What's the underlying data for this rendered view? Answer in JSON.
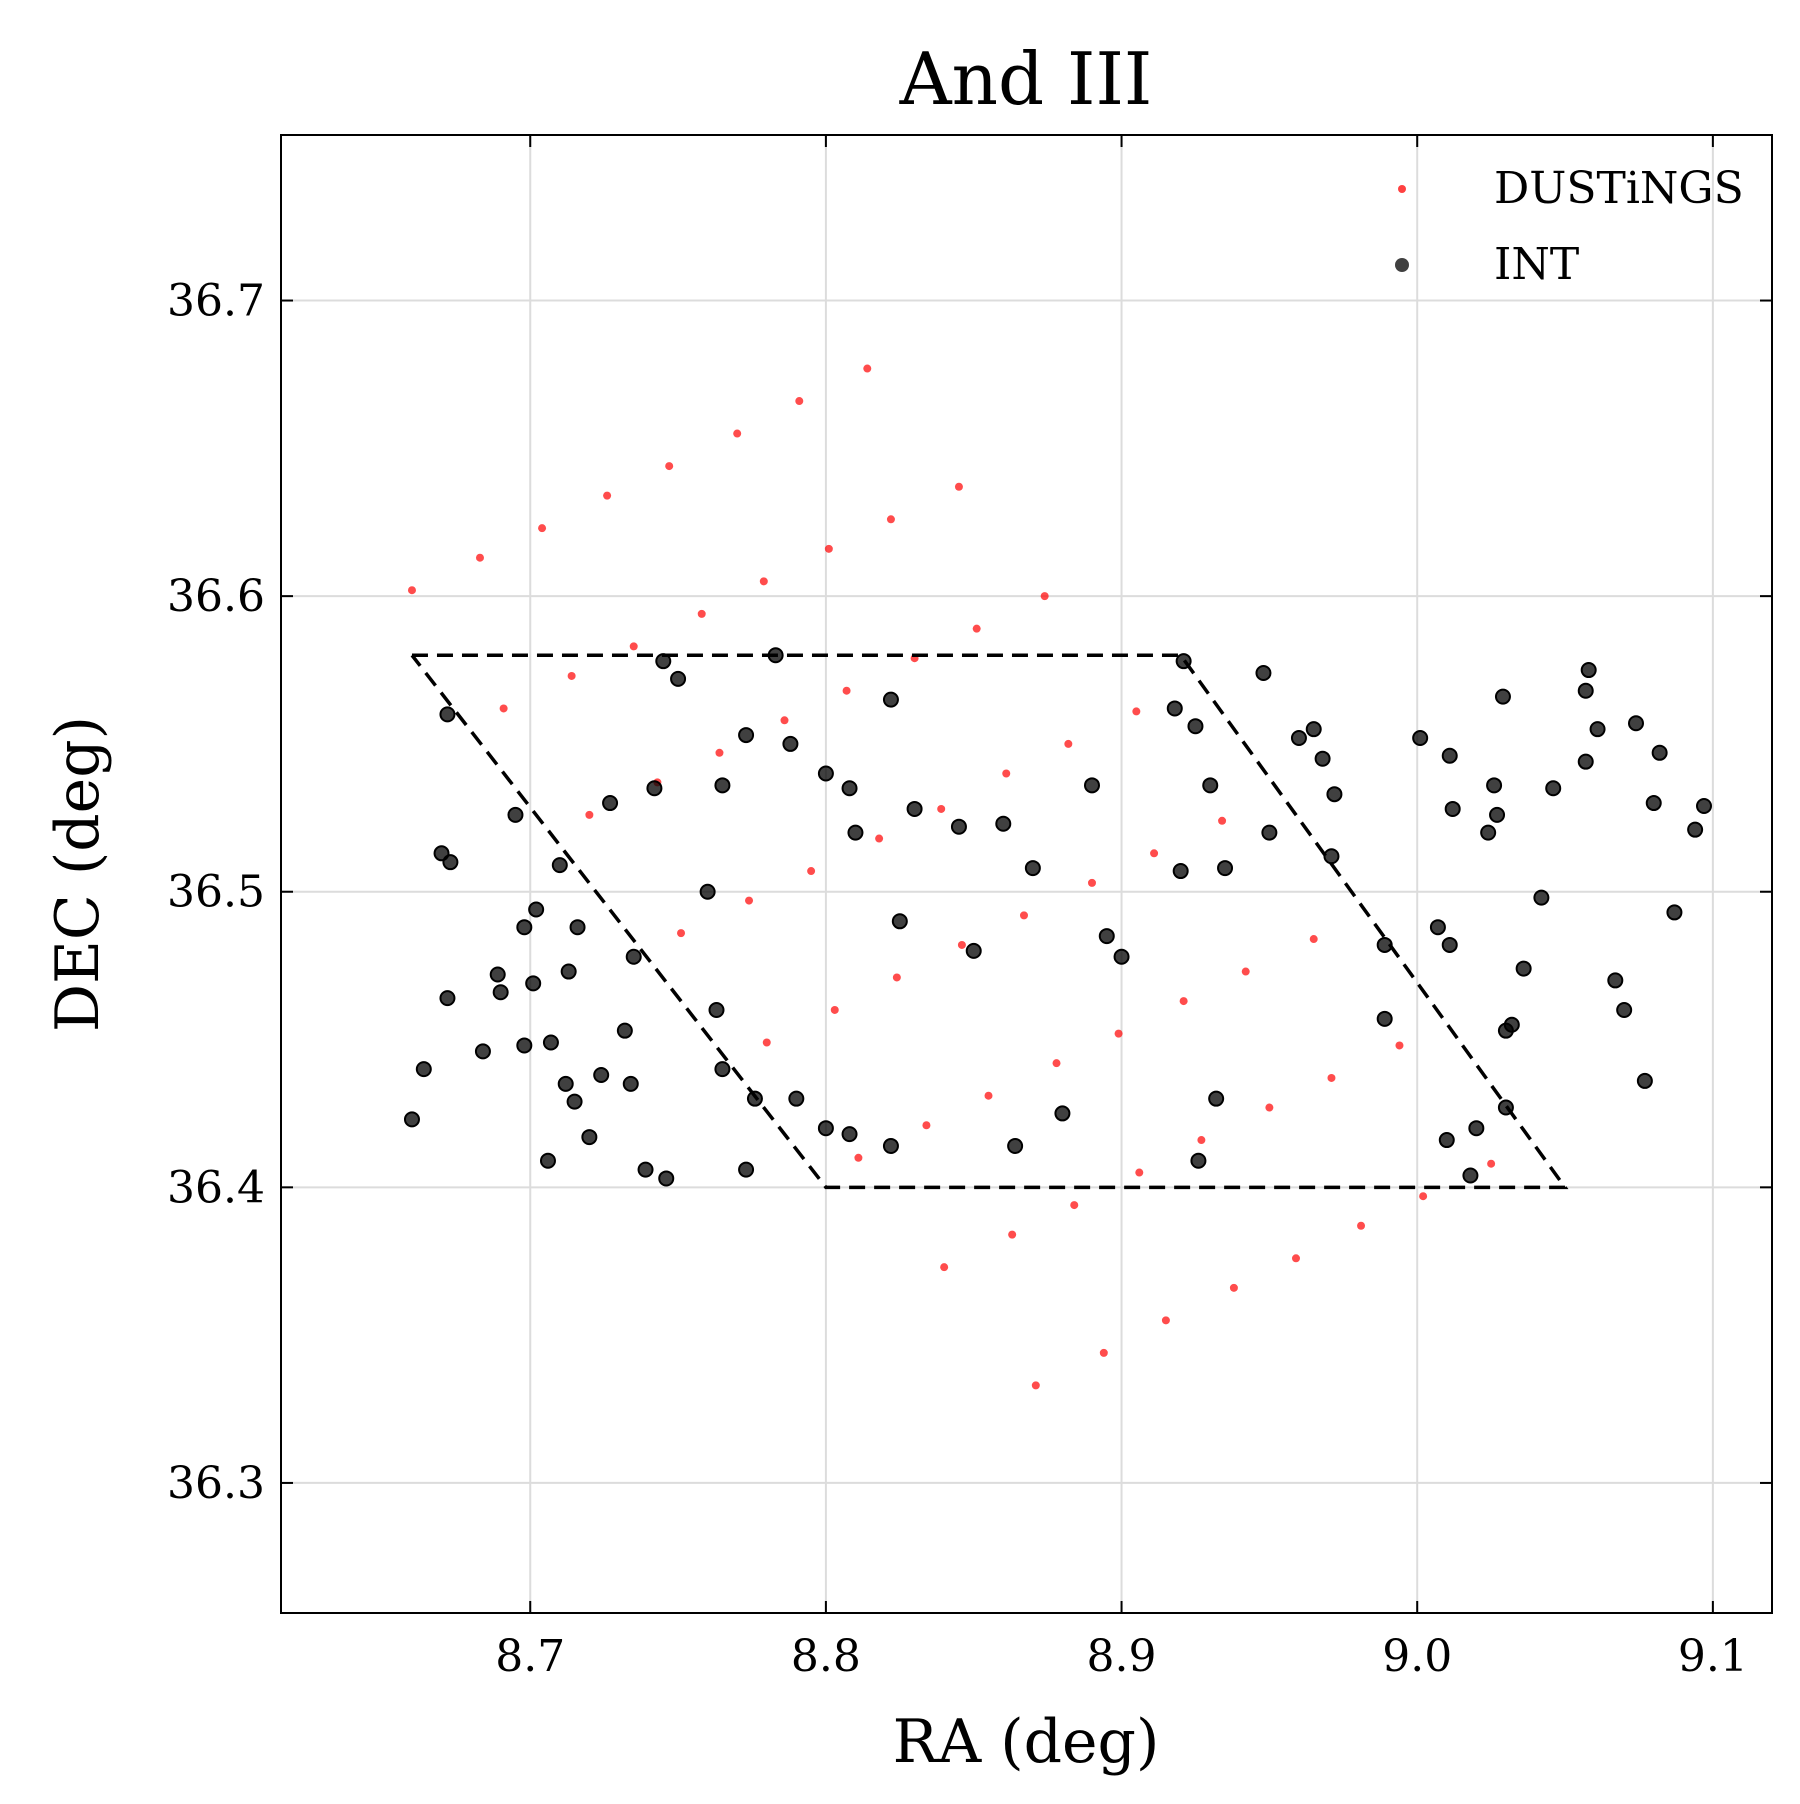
{
  "chart_data": {
    "type": "scatter",
    "title": "And III",
    "x_label": "RA (deg)",
    "y_label": "DEC (deg)",
    "xlim": [
      8.6157,
      9.12
    ],
    "ylim": [
      36.256,
      36.756
    ],
    "xticks": [
      8.7,
      8.8,
      8.9,
      {
        "value": 9.0,
        "label": "9.0"
      },
      9.1
    ],
    "yticks": [
      36.3,
      36.4,
      36.5,
      36.6,
      36.7
    ],
    "grid": true,
    "legend": "upper right",
    "series": [
      {
        "name": "DUSTiNGS",
        "color": "#ff0000",
        "x": [
          8.66,
          8.683,
          8.704,
          8.726,
          8.747,
          8.77,
          8.791,
          8.814,
          8.691,
          8.714,
          8.735,
          8.758,
          8.779,
          8.801,
          8.822,
          8.845,
          8.72,
          8.743,
          8.764,
          8.786,
          8.807,
          8.83,
          8.851,
          8.874,
          8.751,
          8.774,
          8.795,
          8.818,
          8.839,
          8.861,
          8.882,
          8.905,
          8.78,
          8.803,
          8.824,
          8.846,
          8.867,
          8.89,
          8.911,
          8.934,
          8.811,
          8.834,
          8.855,
          8.878,
          8.899,
          8.921,
          8.942,
          8.965,
          8.84,
          8.863,
          8.884,
          8.906,
          8.927,
          8.95,
          8.971,
          8.994,
          8.871,
          8.894,
          8.915,
          8.938,
          8.959,
          8.981,
          9.002,
          9.025
        ],
        "values": [
          36.602,
          36.613,
          36.623,
          36.634,
          36.644,
          36.655,
          36.666,
          36.677,
          36.562,
          36.573,
          36.583,
          36.594,
          36.605,
          36.616,
          36.626,
          36.637,
          36.526,
          36.537,
          36.547,
          36.558,
          36.568,
          36.579,
          36.589,
          36.6,
          36.486,
          36.497,
          36.507,
          36.518,
          36.528,
          36.54,
          36.55,
          36.561,
          36.449,
          36.46,
          36.471,
          36.482,
          36.492,
          36.503,
          36.513,
          36.524,
          36.41,
          36.421,
          36.431,
          36.442,
          36.452,
          36.463,
          36.473,
          36.484,
          36.373,
          36.384,
          36.394,
          36.405,
          36.416,
          36.427,
          36.437,
          36.448,
          36.333,
          36.344,
          36.355,
          36.366,
          36.376,
          36.387,
          36.397,
          36.408
        ]
      },
      {
        "name": "INT",
        "color": "#000000",
        "x": [
          8.66,
          8.664,
          8.67,
          8.673,
          8.672,
          8.684,
          8.689,
          8.69,
          8.698,
          8.698,
          8.701,
          8.702,
          8.706,
          8.707,
          8.712,
          8.713,
          8.715,
          8.716,
          8.72,
          8.724,
          8.732,
          8.734,
          8.739,
          8.746,
          8.773,
          8.672,
          8.695,
          8.71,
          8.727,
          8.742,
          8.745,
          8.75,
          8.765,
          8.773,
          8.783,
          8.788,
          8.8,
          8.808,
          8.81,
          8.822,
          8.825,
          8.83,
          8.845,
          8.85,
          8.86,
          8.87,
          8.88,
          8.89,
          8.895,
          8.9,
          8.92,
          8.918,
          8.921,
          8.925,
          8.93,
          8.935,
          8.95,
          8.948,
          8.96,
          8.965,
          8.968,
          8.972,
          8.971,
          8.989,
          8.989,
          9.001,
          9.007,
          9.011,
          9.011,
          9.012,
          9.024,
          9.026,
          9.027,
          9.029,
          9.03,
          9.032,
          9.036,
          9.042,
          9.046,
          9.057,
          9.057,
          9.058,
          9.061,
          9.067,
          9.07,
          9.074,
          9.077,
          9.08,
          9.082,
          9.087,
          9.094,
          9.097,
          9.02,
          9.018,
          9.01,
          9.03,
          8.926,
          8.932,
          8.864,
          8.822,
          8.808,
          8.8,
          8.79,
          8.776,
          8.765,
          8.763,
          8.735,
          8.76
        ],
        "values": [
          36.423,
          36.44,
          36.513,
          36.51,
          36.464,
          36.446,
          36.472,
          36.466,
          36.488,
          36.448,
          36.469,
          36.494,
          36.409,
          36.449,
          36.435,
          36.473,
          36.429,
          36.488,
          36.417,
          36.438,
          36.453,
          36.435,
          36.406,
          36.403,
          36.406,
          36.56,
          36.526,
          36.509,
          36.53,
          36.535,
          36.578,
          36.572,
          36.536,
          36.553,
          36.58,
          36.55,
          36.54,
          36.535,
          36.52,
          36.565,
          36.49,
          36.528,
          36.522,
          36.48,
          36.523,
          36.508,
          36.425,
          36.536,
          36.485,
          36.478,
          36.507,
          36.562,
          36.578,
          36.556,
          36.536,
          36.508,
          36.52,
          36.574,
          36.552,
          36.555,
          36.545,
          36.533,
          36.512,
          36.482,
          36.457,
          36.552,
          36.488,
          36.482,
          36.546,
          36.528,
          36.52,
          36.536,
          36.526,
          36.566,
          36.453,
          36.455,
          36.474,
          36.498,
          36.535,
          36.544,
          36.568,
          36.575,
          36.555,
          36.47,
          36.46,
          36.557,
          36.436,
          36.53,
          36.547,
          36.493,
          36.521,
          36.529,
          36.42,
          36.404,
          36.416,
          36.427,
          36.409,
          36.43,
          36.414,
          36.414,
          36.418,
          36.42,
          36.43,
          36.43,
          36.44,
          36.46,
          36.478,
          36.5
        ]
      }
    ],
    "outline": {
      "color": "#000000",
      "x": [
        8.66,
        8.92,
        9.05,
        8.8,
        8.66
      ],
      "values": [
        36.58,
        36.58,
        36.4,
        36.4,
        36.58
      ]
    }
  }
}
